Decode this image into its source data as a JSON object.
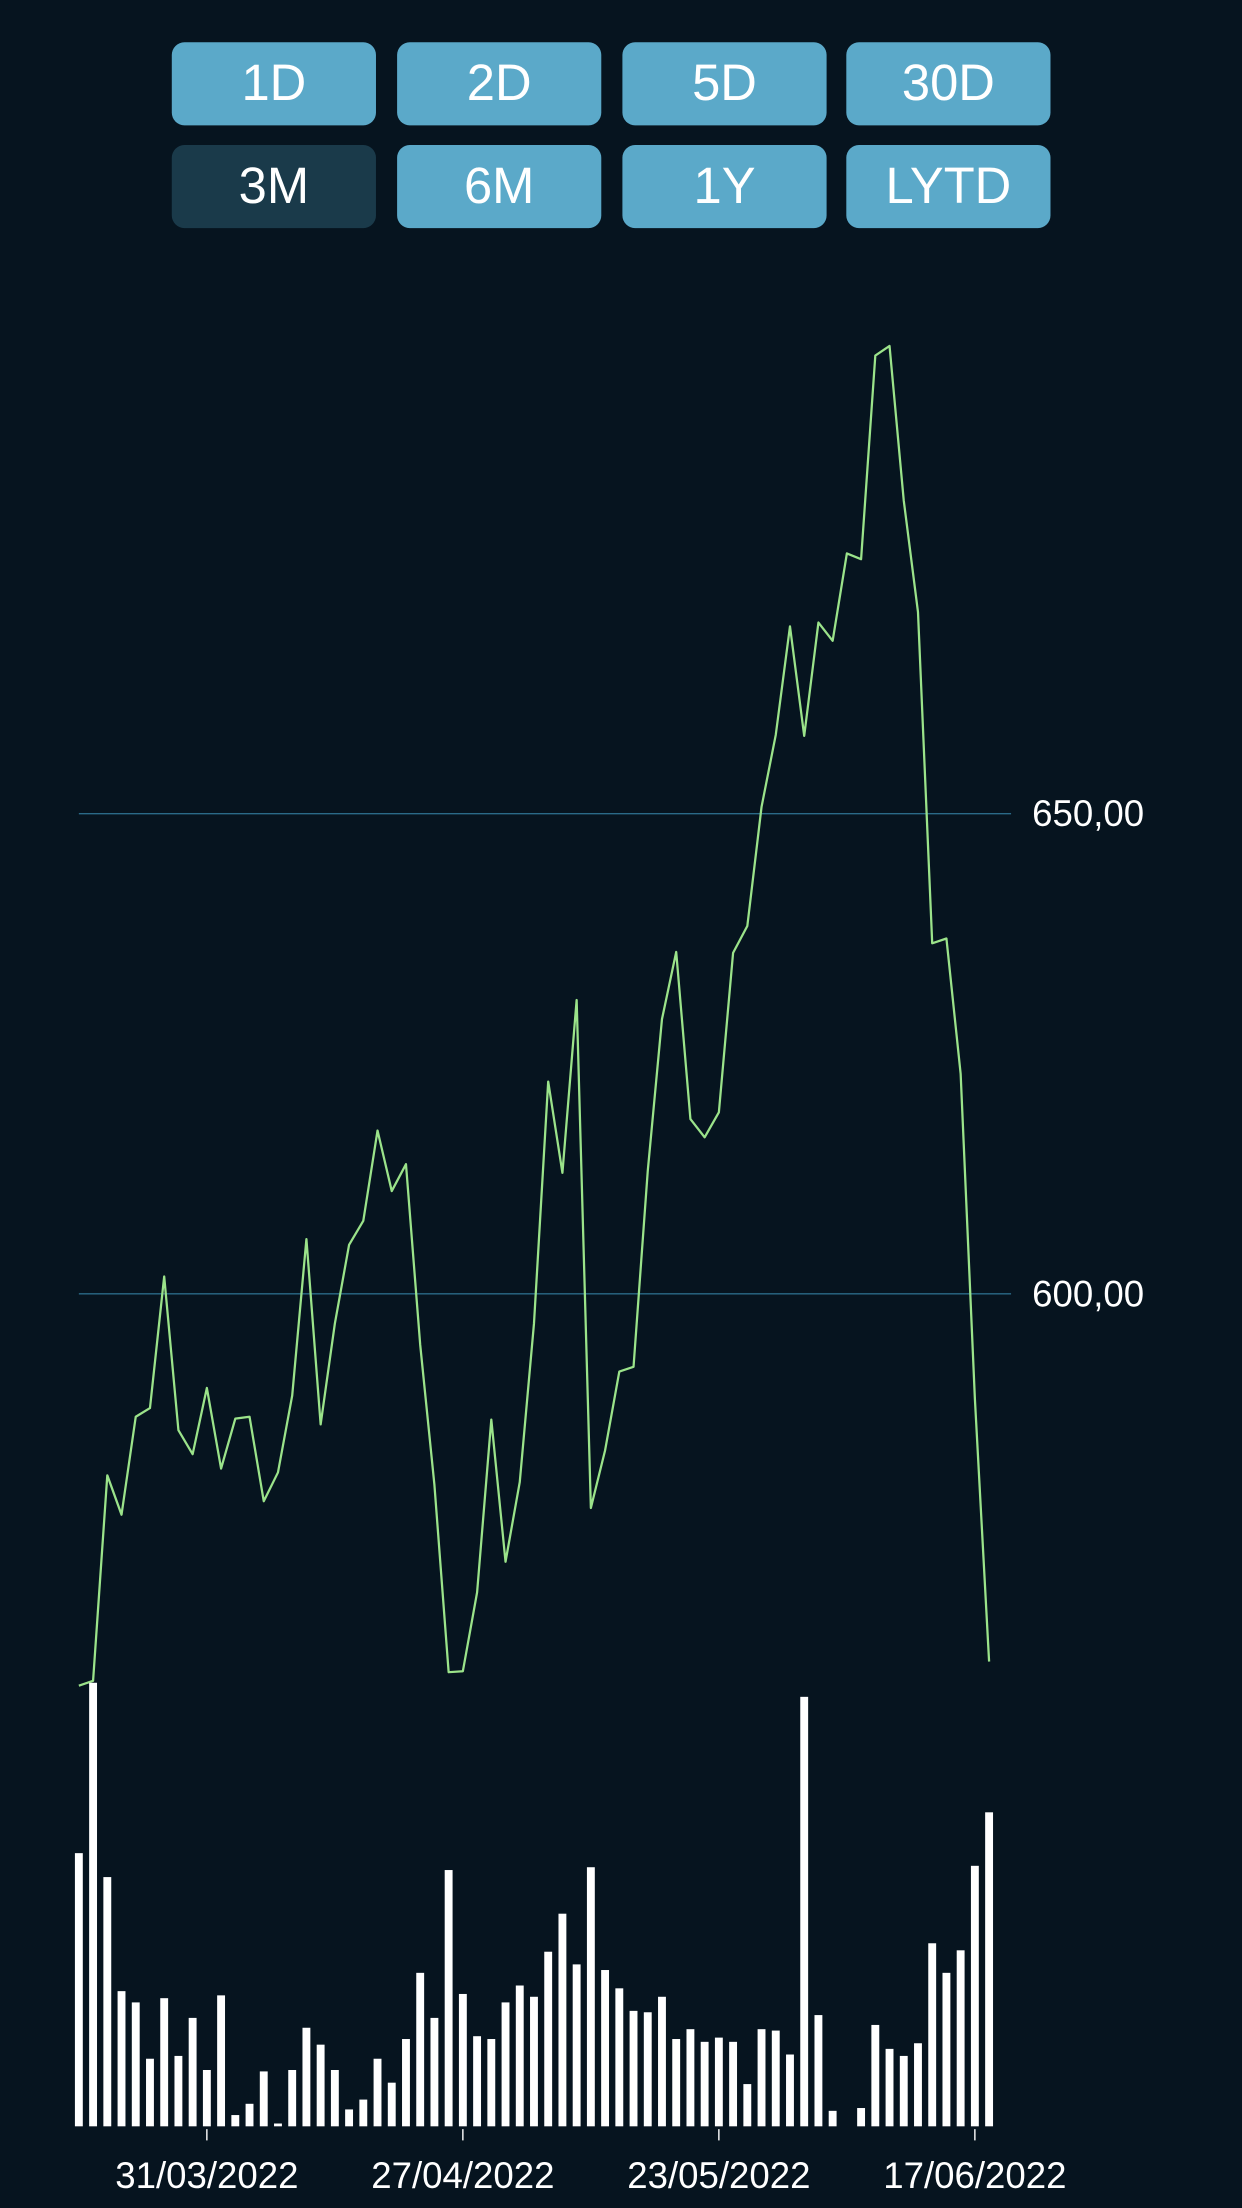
{
  "buttons": [
    {
      "label": "1D"
    },
    {
      "label": "2D"
    },
    {
      "label": "5D"
    },
    {
      "label": "30D"
    },
    {
      "label": "3M",
      "selected": true
    },
    {
      "label": "6M"
    },
    {
      "label": "1Y"
    },
    {
      "label": "LYTD"
    }
  ],
  "chart_data": {
    "type": "line",
    "categories": [
      null,
      null,
      null,
      null,
      null,
      null,
      null,
      null,
      null,
      "31/03/2022",
      null,
      null,
      null,
      null,
      null,
      null,
      null,
      null,
      null,
      null,
      null,
      null,
      null,
      null,
      null,
      null,
      null,
      "27/04/2022",
      null,
      null,
      null,
      null,
      null,
      null,
      null,
      null,
      null,
      null,
      null,
      null,
      null,
      null,
      null,
      null,
      null,
      "23/05/2022",
      null,
      null,
      null,
      null,
      null,
      null,
      null,
      null,
      null,
      null,
      null,
      null,
      null,
      null,
      null,
      null,
      null,
      "17/06/2022",
      null
    ],
    "series": [
      {
        "color": "#9be38a",
        "values": [
          559.2,
          559.7,
          581.1,
          577.0,
          587.2,
          588.1,
          601.8,
          585.8,
          583.3,
          590.2,
          581.8,
          587.0,
          587.2,
          578.4,
          581.4,
          589.4,
          605.7,
          586.4,
          596.9,
          605.1,
          607.6,
          617.0,
          610.7,
          613.5,
          594.7,
          580.1,
          560.6,
          560.7,
          568.9,
          586.9,
          572.1,
          580.4,
          596.9,
          622.1,
          612.6,
          630.6,
          577.7,
          583.7,
          591.9,
          592.4,
          612.8,
          628.6,
          635.6,
          618.2,
          616.3,
          618.9,
          635.5,
          638.3,
          650.7,
          658.2,
          669.5,
          658.1,
          669.9,
          668.0,
          677.1,
          676.5,
          697.7,
          698.7,
          682.6,
          671.0,
          636.5,
          637.0,
          622.9,
          589.1,
          561.7
        ]
      },
      {
        "type": "bar",
        "axis": "y2",
        "color": "#ffffff",
        "values": [
          194,
          315,
          177,
          96,
          88,
          48,
          91,
          50,
          77,
          40,
          93,
          8,
          16,
          39,
          2,
          40,
          70,
          58,
          40,
          12,
          19,
          48,
          31,
          62,
          109,
          77,
          182,
          94,
          64,
          62,
          88,
          100,
          92,
          124,
          151,
          115,
          184,
          111,
          98,
          82,
          81,
          92,
          62,
          69,
          60,
          63,
          60,
          30,
          69,
          68,
          51,
          305,
          79,
          11,
          0,
          13,
          72,
          55,
          50,
          59,
          130,
          109,
          125,
          185,
          223
        ]
      }
    ],
    "ylim": [
      557.3,
      705.4
    ],
    "yticks": [
      {
        "value": 600,
        "label": "600,00"
      },
      {
        "value": 650,
        "label": "650,00"
      }
    ],
    "y2lim": [
      0,
      315
    ],
    "grid": true,
    "grid_color": "#2a6a88"
  }
}
